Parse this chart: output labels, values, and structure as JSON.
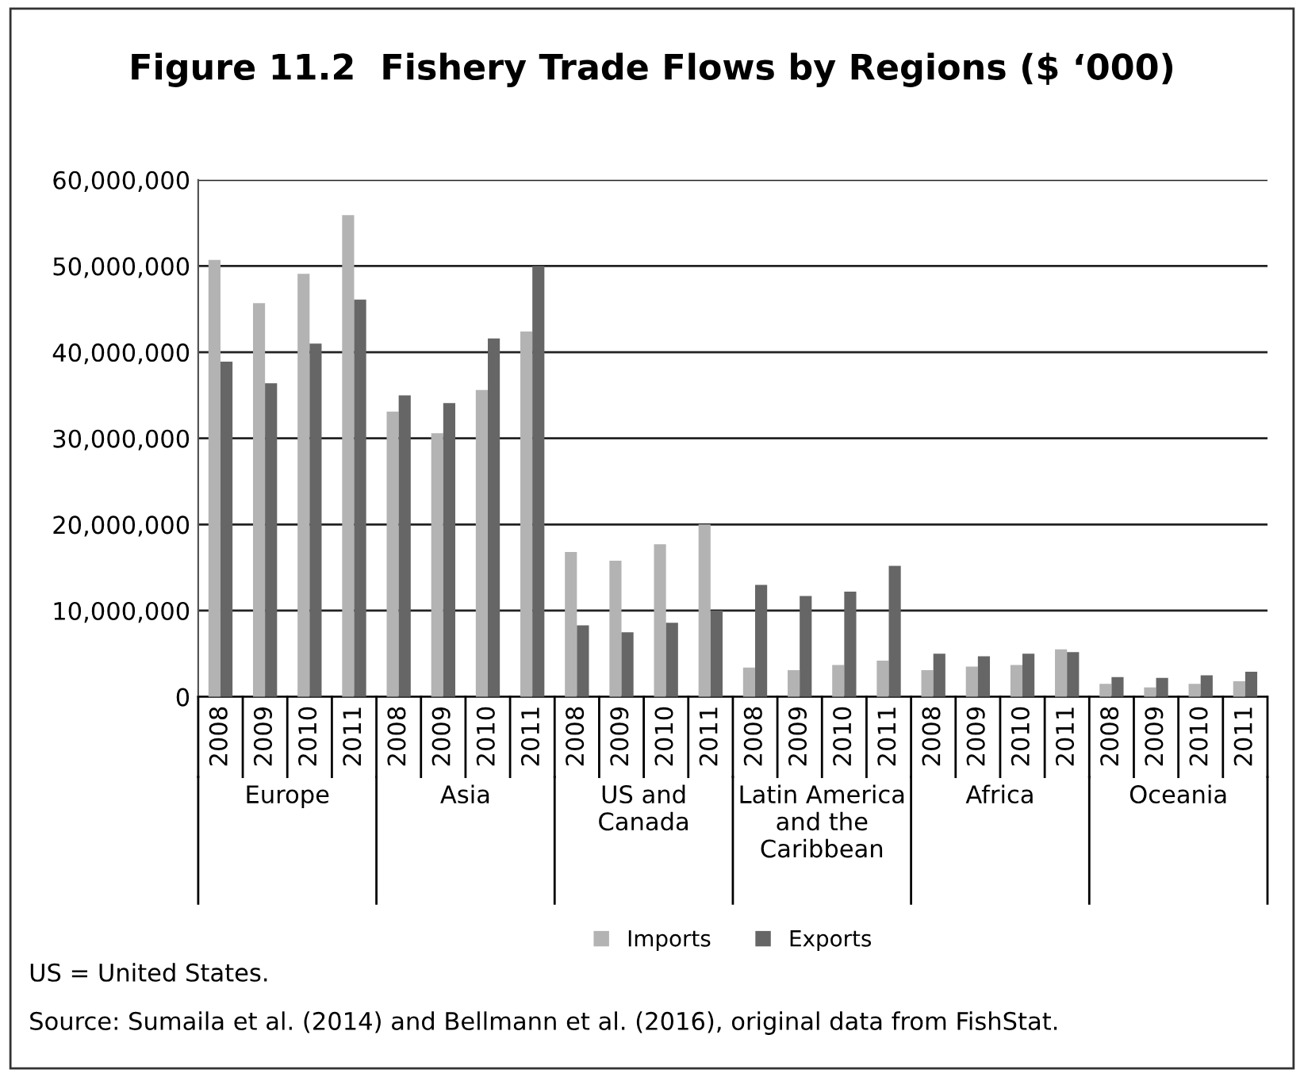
{
  "chart_data": {
    "type": "bar",
    "title": "Figure 11.2  Fishery Trade Flows by Regions ($ ‘000)",
    "categories": [
      "2008",
      "2009",
      "2010",
      "2011",
      "2008",
      "2009",
      "2010",
      "2011",
      "2008",
      "2009",
      "2010",
      "2011",
      "2008",
      "2009",
      "2010",
      "2011",
      "2008",
      "2009",
      "2010",
      "2011",
      "2008",
      "2009",
      "2010",
      "2011"
    ],
    "series": [
      {
        "name": "Imports",
        "color": "#b3b3b3",
        "values": [
          50700000,
          45700000,
          49100000,
          55900000,
          33100000,
          30600000,
          35600000,
          42400000,
          16800000,
          15800000,
          17700000,
          20000000,
          3400000,
          3100000,
          3700000,
          4200000,
          3100000,
          3500000,
          3700000,
          5500000,
          1500000,
          1100000,
          1500000,
          1800000
        ]
      },
      {
        "name": "Exports",
        "color": "#666666",
        "values": [
          38900000,
          36400000,
          41000000,
          46100000,
          35000000,
          34100000,
          41600000,
          50000000,
          8300000,
          7500000,
          8600000,
          10000000,
          13000000,
          11700000,
          12200000,
          15200000,
          5000000,
          4700000,
          5000000,
          5200000,
          2300000,
          2200000,
          2500000,
          2900000
        ]
      }
    ],
    "ylim": [
      0,
      60000000
    ],
    "yticks": [
      {
        "value": 0,
        "label": "0"
      },
      {
        "value": 10000000,
        "label": "10,000,000"
      },
      {
        "value": 20000000,
        "label": "20,000,000"
      },
      {
        "value": 30000000,
        "label": "30,000,000"
      },
      {
        "value": 40000000,
        "label": "40,000,000"
      },
      {
        "value": 50000000,
        "label": "50,000,000"
      },
      {
        "value": 60000000,
        "label": "60,000,000"
      }
    ],
    "grid": "y",
    "legend": "bottom",
    "annotations": [
      "Europe",
      "Asia",
      "US and\nCanada",
      "Latin America\nand the\nCaribbean",
      "Africa",
      "Oceania",
      "US = United States.",
      "Source: Sumaila et al. (2014) and Bellmann et al. (2016), original data from FishStat."
    ]
  }
}
